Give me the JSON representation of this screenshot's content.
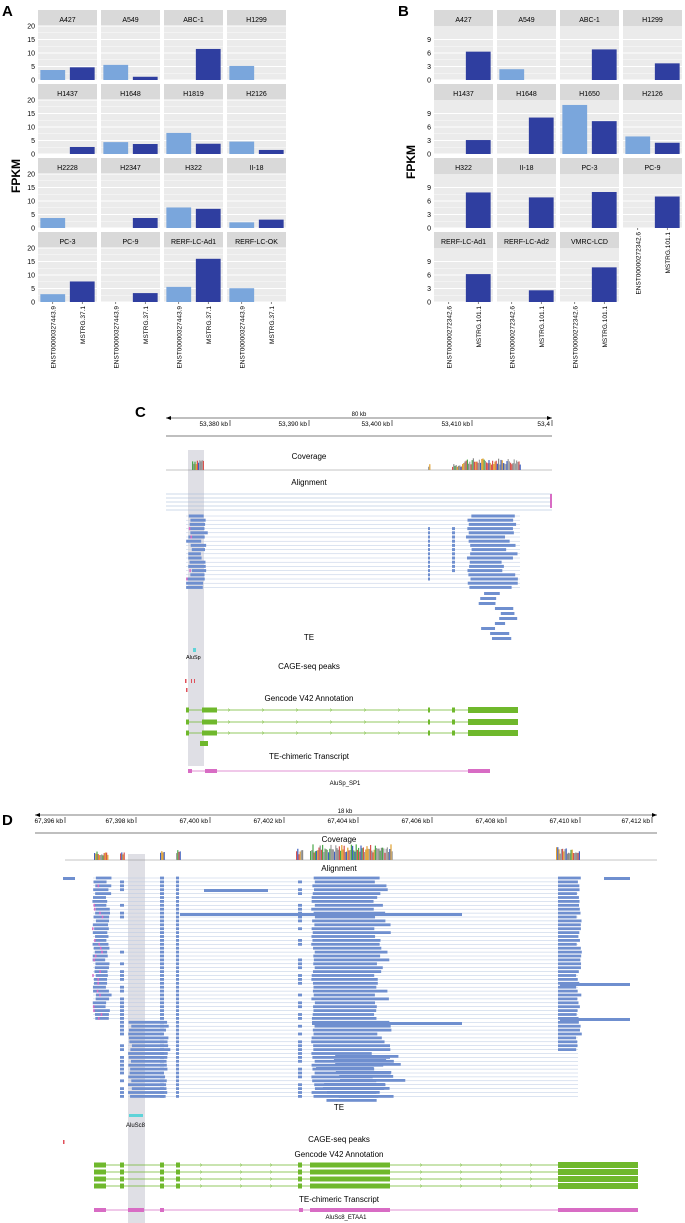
{
  "colors": {
    "light": "#7aa6dc",
    "dark": "#2f3ea0",
    "strip": "#d9d9d9",
    "panel": "#ebebeb",
    "read": "#6f8fcf",
    "gene": "#6fb82c",
    "te": "#5fd3d8",
    "cage": "#e0505a",
    "chimeric": "#d86cc4",
    "highlight": "#d4d4dc"
  },
  "panelA": {
    "label": "A",
    "ylabel": "FPKM",
    "yticks": [
      "0",
      "5",
      "10",
      "15",
      "20"
    ],
    "xlabels": [
      "ENST00000327443.9",
      "MSTRG.37.1"
    ],
    "chart_data": {
      "type": "bar",
      "categories": [
        "ENST00000327443.9",
        "MSTRG.37.1"
      ],
      "ylim": [
        0,
        20
      ],
      "facets": [
        {
          "name": "A427",
          "values": [
            3.7,
            4.7
          ]
        },
        {
          "name": "A549",
          "values": [
            5.6,
            1.2
          ]
        },
        {
          "name": "ABC-1",
          "values": [
            0,
            11.5
          ]
        },
        {
          "name": "H1299",
          "values": [
            5.2,
            0
          ]
        },
        {
          "name": "H1437",
          "values": [
            0,
            2.6
          ]
        },
        {
          "name": "H1648",
          "values": [
            4.4,
            3.7
          ]
        },
        {
          "name": "H1819",
          "values": [
            7.8,
            3.8
          ]
        },
        {
          "name": "H2126",
          "values": [
            4.6,
            1.5
          ]
        },
        {
          "name": "H2228",
          "values": [
            3.7,
            0
          ]
        },
        {
          "name": "H2347",
          "values": [
            0,
            3.7
          ]
        },
        {
          "name": "H322",
          "values": [
            7.6,
            7.1
          ]
        },
        {
          "name": "II-18",
          "values": [
            2.1,
            3.1
          ]
        },
        {
          "name": "PC-3",
          "values": [
            2.9,
            7.6
          ]
        },
        {
          "name": "PC-9",
          "values": [
            0,
            3.3
          ]
        },
        {
          "name": "RERF-LC-Ad1",
          "values": [
            5.6,
            16.0
          ]
        },
        {
          "name": "RERF-LC-OK",
          "values": [
            5.1,
            0
          ]
        }
      ]
    }
  },
  "panelB": {
    "label": "B",
    "ylabel": "FPKM",
    "yticks": [
      "0",
      "3",
      "6",
      "9"
    ],
    "xlabels": [
      "ENST00000272342.6",
      "MSTRG.101.1"
    ],
    "chart_data": {
      "type": "bar",
      "categories": [
        "ENST00000272342.6",
        "MSTRG.101.1"
      ],
      "ylim": [
        0,
        12
      ],
      "facets": [
        {
          "name": "A427",
          "values": [
            0,
            6.3
          ]
        },
        {
          "name": "A549",
          "values": [
            2.4,
            0
          ]
        },
        {
          "name": "ABC-1",
          "values": [
            0,
            6.8
          ]
        },
        {
          "name": "H1299",
          "values": [
            0,
            3.7
          ]
        },
        {
          "name": "H1437",
          "values": [
            0,
            3.1
          ]
        },
        {
          "name": "H1648",
          "values": [
            0,
            8.1
          ]
        },
        {
          "name": "H1650",
          "values": [
            10.9,
            7.3
          ]
        },
        {
          "name": "H2126",
          "values": [
            3.9,
            2.5
          ]
        },
        {
          "name": "H322",
          "values": [
            0,
            7.9
          ]
        },
        {
          "name": "II-18",
          "values": [
            0,
            6.8
          ]
        },
        {
          "name": "PC-3",
          "values": [
            0,
            8.0
          ]
        },
        {
          "name": "PC-9",
          "values": [
            0,
            7.0
          ]
        },
        {
          "name": "RERF-LC-Ad1",
          "values": [
            0,
            6.2
          ]
        },
        {
          "name": "RERF-LC-Ad2",
          "values": [
            0,
            2.6
          ]
        },
        {
          "name": "VMRC-LCD",
          "values": [
            0,
            7.7
          ]
        }
      ]
    }
  },
  "panelC": {
    "label": "C",
    "span": "80 kb",
    "ticks": [
      "53,380 kb",
      "53,390 kb",
      "53,400 kb",
      "53,410 kb",
      "53,4"
    ],
    "tracks": {
      "coverage": "Coverage",
      "alignment": "Alignment",
      "te": "TE",
      "cage": "CAGE-seq peaks",
      "gencode": "Gencode V42 Annotation",
      "chimeric": "TE-chimeric Transcript"
    },
    "te_name": "AluSp",
    "transcript_name": "AluSp_SP1"
  },
  "panelD": {
    "label": "D",
    "span": "18 kb",
    "ticks": [
      "67,396 kb",
      "67,398 kb",
      "67,400 kb",
      "67,402 kb",
      "67,404 kb",
      "67,406 kb",
      "67,408 kb",
      "67,410 kb",
      "67,412 kb"
    ],
    "tracks": {
      "coverage": "Coverage",
      "alignment": "Alignment",
      "te": "TE",
      "cage": "CAGE-seq peaks",
      "gencode": "Gencode V42 Annotation",
      "chimeric": "TE-chimeric Transcript"
    },
    "te_name": "AluSc8",
    "transcript_name": "AluSc8_ETAA1"
  }
}
